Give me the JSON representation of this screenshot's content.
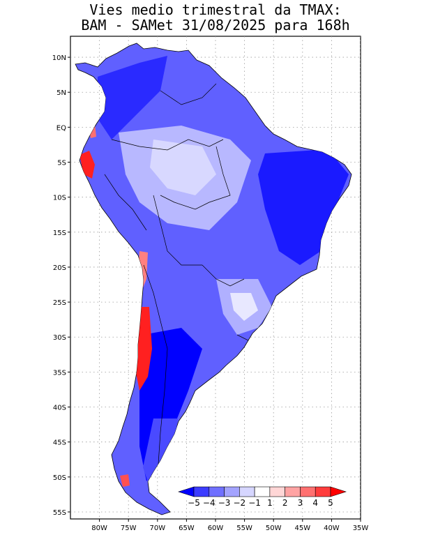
{
  "title": {
    "line1": "Vies medio trimestral da TMAX:",
    "line2": "BAM - SAMet 31/08/2025  para 168h"
  },
  "map": {
    "region": "South America",
    "variable": "TMAX bias (3-month mean)",
    "lat_range": [
      -56,
      13
    ],
    "lon_range": [
      -85,
      -35
    ],
    "lat_ticks": [
      {
        "value": 10,
        "label": "10N"
      },
      {
        "value": 5,
        "label": "5N"
      },
      {
        "value": 0,
        "label": "EQ"
      },
      {
        "value": -5,
        "label": "5S"
      },
      {
        "value": -10,
        "label": "10S"
      },
      {
        "value": -15,
        "label": "15S"
      },
      {
        "value": -20,
        "label": "20S"
      },
      {
        "value": -25,
        "label": "25S"
      },
      {
        "value": -30,
        "label": "30S"
      },
      {
        "value": -35,
        "label": "35S"
      },
      {
        "value": -40,
        "label": "40S"
      },
      {
        "value": -45,
        "label": "45S"
      },
      {
        "value": -50,
        "label": "50S"
      },
      {
        "value": -55,
        "label": "55S"
      }
    ],
    "lon_ticks": [
      {
        "value": -80,
        "label": "80W"
      },
      {
        "value": -75,
        "label": "75W"
      },
      {
        "value": -70,
        "label": "70W"
      },
      {
        "value": -65,
        "label": "65W"
      },
      {
        "value": -60,
        "label": "60W"
      },
      {
        "value": -55,
        "label": "55W"
      },
      {
        "value": -50,
        "label": "50W"
      },
      {
        "value": -45,
        "label": "45W"
      },
      {
        "value": -40,
        "label": "40W"
      },
      {
        "value": -35,
        "label": "35W"
      }
    ],
    "gridlines": true
  },
  "colorbar": {
    "levels": [
      "-5",
      "-4",
      "-3",
      "-2",
      "-1",
      "1",
      "2",
      "3",
      "4",
      "5"
    ],
    "colors": [
      "#0000ff",
      "#3c3cff",
      "#7070ff",
      "#a3a3ff",
      "#d6d6ff",
      "#ffffff",
      "#ffd6d6",
      "#ffa3a3",
      "#ff7070",
      "#ff3c3c",
      "#ff0000"
    ]
  },
  "colors": {
    "strong_cold": "#1a1aff",
    "cold": "#4b4bff",
    "moderate_cold": "#7a7aff",
    "weak_cold": "#b5b5ff",
    "near_zero": "#dcdcff",
    "warm": "#ff5a5a",
    "border": "#000000"
  }
}
